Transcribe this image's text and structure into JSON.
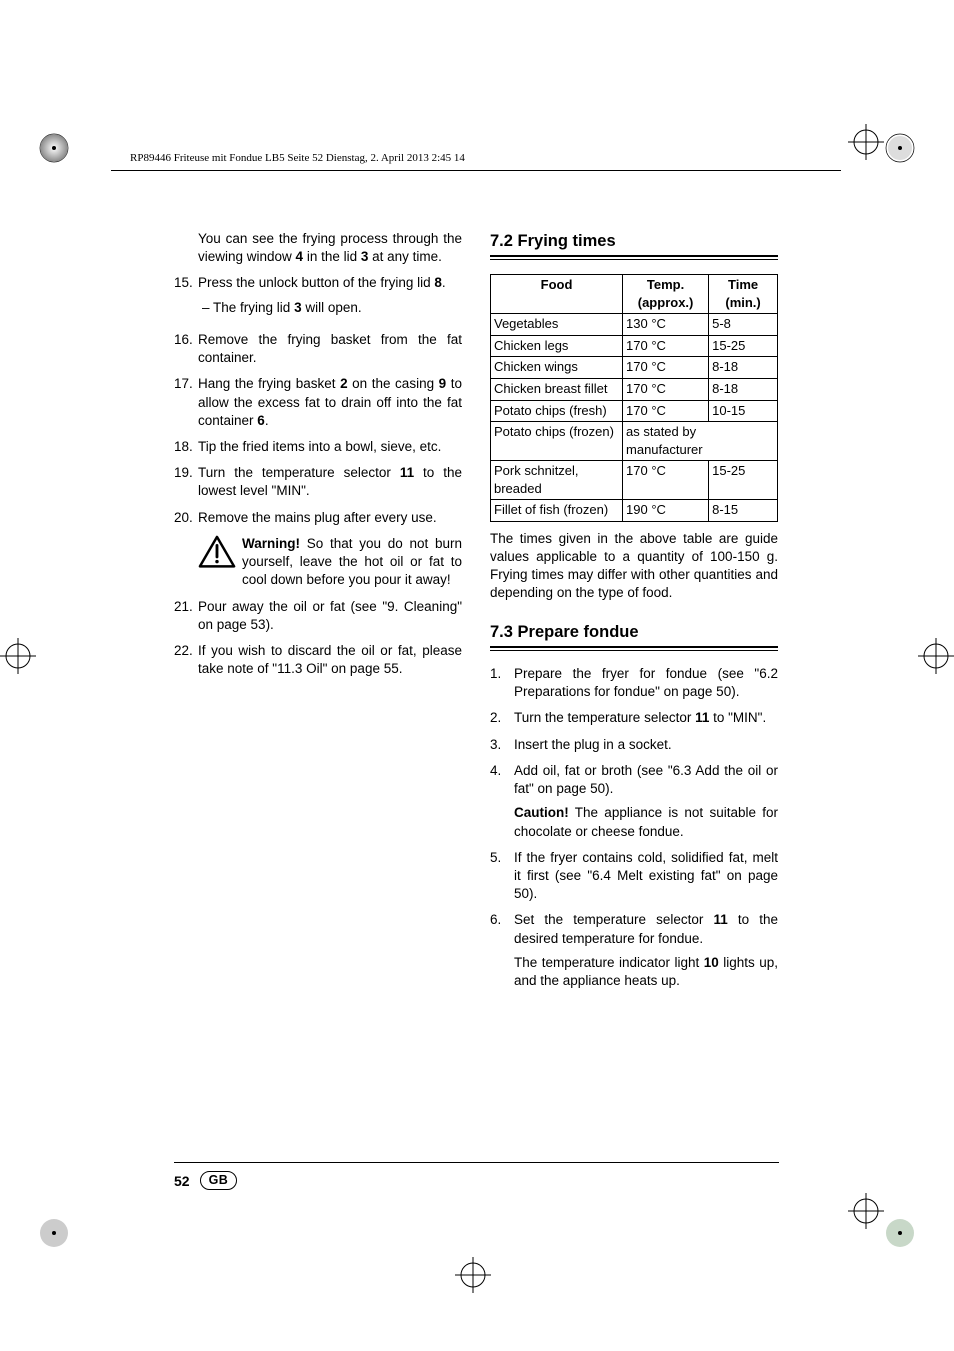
{
  "print_header": "RP89446 Friteuse mit Fondue LB5  Seite 52  Dienstag, 2. April 2013  2:45 14",
  "page_number": "52",
  "country_code": "GB",
  "left": {
    "lead_para": "You can see the frying process through the viewing window <b>4</b> in the lid <b>3</b> at any time.",
    "step15": "Press the unlock button of the frying lid <b>8</b>.",
    "step15_sub": "– The frying lid <b>3</b> will open.",
    "step16": "Remove the frying basket from the fat container.",
    "step17": "Hang the frying basket <b>2</b> on the casing <b>9</b> to allow the excess fat to drain off into the fat container <b>6</b>.",
    "step18": "Tip the fried items into a bowl, sieve, etc.",
    "step19": "Turn the temperature selector <b>11</b> to the lowest level \"MIN\".",
    "step20": "Remove the mains plug after every use.",
    "warn": "<b>Warning!</b> So that you do not burn yourself, leave the hot oil or fat to cool down before you pour it away!",
    "step21": "Pour away the oil or fat (see \"9. Cleaning\" on page 53).",
    "step22": "If you wish to discard the oil or fat, please take note of \"11.3 Oil\" on page 55."
  },
  "right": {
    "sec72_title": "7.2 Frying times",
    "table": {
      "headers": [
        "Food",
        "Temp. (approx.)",
        "Time (min.)"
      ],
      "rows": [
        [
          "Vegetables",
          "130 °C",
          "5-8"
        ],
        [
          "Chicken legs",
          "170 °C",
          "15-25"
        ],
        [
          "Chicken wings",
          "170 °C",
          "8-18"
        ],
        [
          "Chicken breast fillet",
          "170 °C",
          "8-18"
        ],
        [
          "Potato chips (fresh)",
          "170 °C",
          "10-15"
        ]
      ],
      "merged_row": {
        "food": "Potato chips (frozen)",
        "note": "as stated by manufacturer"
      },
      "rows2": [
        [
          "Pork schnitzel, breaded",
          "170 °C",
          "15-25"
        ],
        [
          "Fillet of fish (frozen)",
          "190 °C",
          "8-15"
        ]
      ]
    },
    "table_note": "The times given in the above table are guide values applicable to a quantity of 100-150 g. Frying times may differ with other quantities and depending on the type of food.",
    "sec73_title": "7.3 Prepare fondue",
    "f1": "Prepare the fryer for fondue (see \"6.2 Preparations for fondue\" on page 50).",
    "f2": "Turn the temperature selector <b>11</b> to \"MIN\".",
    "f3": "Insert the plug in a socket.",
    "f4": "Add oil, fat or broth (see \"6.3 Add the oil or fat\" on page 50).",
    "f4_warn": "<b>Caution!</b> The appliance is not suitable for chocolate or cheese fondue.",
    "f5": "If the fryer contains cold, solidified fat, melt it first (see \"6.4 Melt existing fat\" on page 50).",
    "f6": "Set the temperature selector <b>11</b> to the desired temperature for fondue.",
    "f6_note": "The temperature indicator light <b>10</b> lights up, and the appliance heats up."
  },
  "colors": {
    "text": "#000000",
    "bg": "#ffffff"
  },
  "typography": {
    "body_fontsize_pt": 10,
    "heading_fontsize_pt": 12.5,
    "font_family": "Futura / Century Gothic"
  }
}
